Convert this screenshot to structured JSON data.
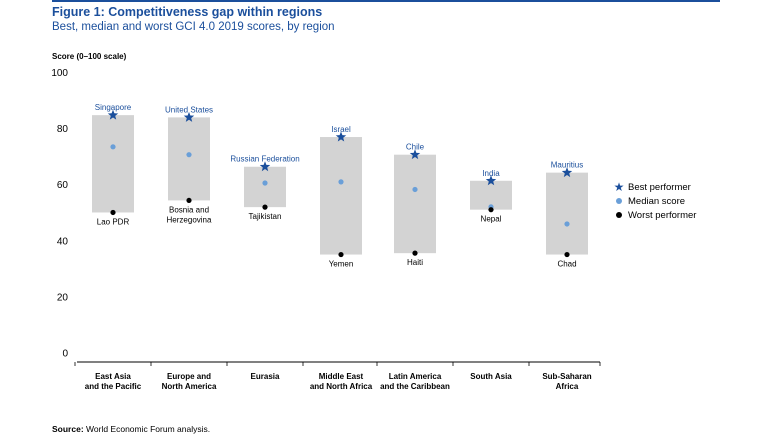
{
  "header": {
    "title": "Figure 1: Competitiveness gap within regions",
    "subtitle": "Best, median and worst GCI 4.0 2019 scores, by region",
    "y_axis_title": "Score (0–100 scale)"
  },
  "source": {
    "label": "Source:",
    "text": " World Economic Forum analysis."
  },
  "legend": {
    "best": "Best performer",
    "median": "Median score",
    "worst": "Worst performer"
  },
  "colors": {
    "bar": "#d3d3d3",
    "best": "#1b4f9c",
    "median": "#6a9fd8",
    "worst": "#000000",
    "title": "#1b4f9c"
  },
  "chart_data": {
    "type": "range-bar",
    "title": "Figure 1: Competitiveness gap within regions",
    "subtitle": "Best, median and worst GCI 4.0 2019 scores, by region",
    "ylabel": "Score (0–100 scale)",
    "ylim": [
      0,
      100
    ],
    "yticks": [
      "0",
      "20",
      "40",
      "60",
      "80",
      "100"
    ],
    "categories": [
      [
        "East Asia",
        "and the Pacific"
      ],
      [
        "Europe and",
        "North America"
      ],
      [
        "Eurasia"
      ],
      [
        "Middle East",
        "and North Africa"
      ],
      [
        "Latin America",
        "and the Caribbean"
      ],
      [
        "South Asia"
      ],
      [
        "Sub-Saharan",
        "Africa"
      ]
    ],
    "best": [
      84.8,
      84.0,
      66.4,
      77.0,
      70.7,
      61.4,
      64.3
    ],
    "median": [
      73.5,
      70.7,
      60.6,
      61.0,
      58.3,
      52.1,
      46.0
    ],
    "worst": [
      50.1,
      54.4,
      52.0,
      35.1,
      35.6,
      51.1,
      35.1
    ],
    "best_labels": [
      [
        "Singapore"
      ],
      [
        "United States"
      ],
      [
        "Russian Federation"
      ],
      [
        "Israel"
      ],
      [
        "Chile"
      ],
      [
        "India"
      ],
      [
        "Mauritius"
      ]
    ],
    "worst_labels": [
      [
        "Lao PDR"
      ],
      [
        "Bosnia and",
        "Herzegovina"
      ],
      [
        "Tajikistan"
      ],
      [
        "Yemen"
      ],
      [
        "Haiti"
      ],
      [
        "Nepal"
      ],
      [
        "Chad"
      ]
    ],
    "gridlines": false,
    "legend_position": "right"
  }
}
